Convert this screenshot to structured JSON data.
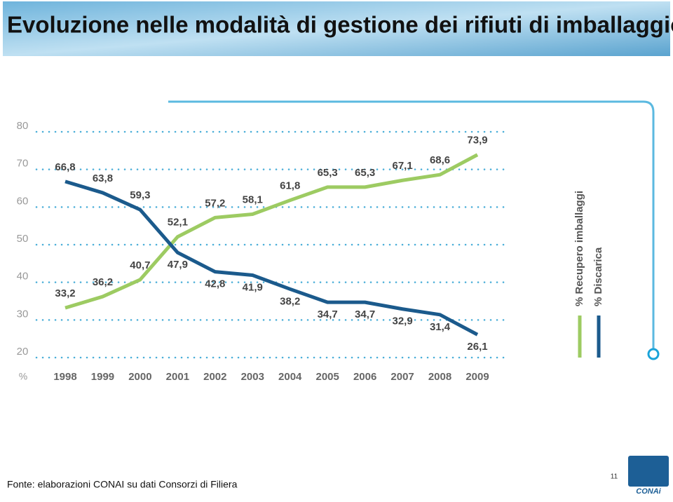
{
  "chart_data": {
    "type": "line",
    "title": "Evoluzione nelle modalità di gestione dei rifiuti di imballaggio",
    "y_label": "%",
    "categories": [
      "1998",
      "1999",
      "2000",
      "2001",
      "2002",
      "2003",
      "2004",
      "2005",
      "2006",
      "2007",
      "2008",
      "2009"
    ],
    "series": [
      {
        "name": "% Recupero imballaggi",
        "color": "#9dcb62",
        "values": [
          33.2,
          36.2,
          40.7,
          52.1,
          57.2,
          58.1,
          61.8,
          65.3,
          65.3,
          67.1,
          68.6,
          73.9
        ],
        "value_labels": [
          "33,2",
          "36,2",
          "40,7",
          "52,1",
          "57,2",
          "58,1",
          "61,8",
          "65,3",
          "65,3",
          "67,1",
          "68,6",
          "73,9"
        ]
      },
      {
        "name": "% Discarica",
        "color": "#1b5a8c",
        "values": [
          66.8,
          63.8,
          59.3,
          47.9,
          42.8,
          41.9,
          38.2,
          34.7,
          34.7,
          32.9,
          31.4,
          26.1
        ],
        "value_labels": [
          "66,8",
          "63,8",
          "59,3",
          "47,9",
          "42,8",
          "41,9",
          "38,2",
          "34,7",
          "34,7",
          "32,9",
          "31,4",
          "26,1"
        ]
      }
    ],
    "ylim": [
      20,
      80
    ],
    "yticks": [
      20,
      30,
      40,
      50,
      60,
      70,
      80
    ],
    "grid": true
  },
  "source": "Fonte: elaborazioni CONAI su dati Consorzi di Filiera",
  "page_number": "11",
  "logo_text": "CONAi"
}
